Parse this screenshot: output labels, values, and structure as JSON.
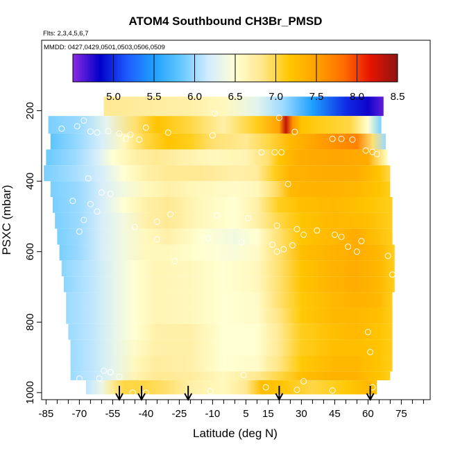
{
  "chart_data": {
    "type": "heatmap",
    "title": "ATOM4 Southbound CH3Br_PMSD",
    "subtitle_flights": "Flts: 2,3,4,5,6,7",
    "subtitle_dates": "MMDD: 0427,0429,0501,0503,0506,0509",
    "xlabel": "Latitude (deg N)",
    "ylabel": "PSXC (mbar)",
    "xlim": [
      -87,
      88
    ],
    "ylim": [
      1020,
      0
    ],
    "x_ticks": [
      -85,
      -70,
      -55,
      -40,
      -25,
      -10,
      5,
      15,
      30,
      45,
      60,
      75
    ],
    "x_tick_labels": [
      "-85",
      "-70",
      "-55",
      "-40",
      "-25",
      "-10",
      "5",
      "15",
      "30",
      "45",
      "60",
      "75"
    ],
    "y_ticks": [
      200,
      400,
      600,
      800,
      1000
    ],
    "y_tick_labels": [
      "200",
      "400",
      "600",
      "800",
      "1000"
    ],
    "colorbar": {
      "min": 4.5,
      "max": 8.5,
      "ticks": [
        5.0,
        5.5,
        6.0,
        6.5,
        7.0,
        7.5,
        8.0,
        8.5
      ],
      "tick_labels": [
        "5.0",
        "5.5",
        "6.0",
        "6.5",
        "7.0",
        "7.5",
        "8.0",
        "8.5"
      ],
      "colors": [
        "#8a2be2",
        "#0000c8",
        "#1e5aff",
        "#1ea0ff",
        "#64c8ff",
        "#d2ecff",
        "#ffffd2",
        "#ffe68c",
        "#ffc800",
        "#ffa000",
        "#ff6e00",
        "#e61400",
        "#8c1414"
      ]
    },
    "profile_marker_latitudes": [
      -52,
      -42,
      -21,
      20,
      61
    ],
    "layers": [
      {
        "p_top": 160,
        "p_bot": 215,
        "lat_min": -59,
        "lat_max": 67,
        "lats": [
          -59,
          -40,
          -20,
          -5,
          10,
          22,
          35,
          50,
          60,
          67
        ],
        "values": [
          6.8,
          6.75,
          6.7,
          6.6,
          6.3,
          6.0,
          5.5,
          5.0,
          4.8,
          4.6
        ]
      },
      {
        "p_top": 215,
        "p_bot": 265,
        "lat_min": -84,
        "lat_max": 66,
        "lats": [
          -84,
          -70,
          -58,
          -45,
          -35,
          -20,
          -5,
          10,
          20,
          23,
          26,
          30,
          40,
          52,
          60,
          66
        ],
        "values": [
          5.9,
          6.0,
          6.3,
          6.9,
          7.2,
          7.0,
          6.7,
          7.1,
          7.5,
          8.3,
          7.6,
          7.2,
          7.1,
          7.0,
          6.5,
          5.9
        ]
      },
      {
        "p_top": 265,
        "p_bot": 310,
        "lat_min": -83,
        "lat_max": 68,
        "lats": [
          -83,
          -70,
          -60,
          -50,
          -40,
          -30,
          -20,
          -10,
          5,
          15,
          25,
          35,
          45,
          55,
          62,
          68
        ],
        "values": [
          5.8,
          6.0,
          6.2,
          6.6,
          7.0,
          7.2,
          7.1,
          6.9,
          6.8,
          7.0,
          7.3,
          7.45,
          7.6,
          7.7,
          6.9,
          6.0
        ]
      },
      {
        "p_top": 310,
        "p_bot": 355,
        "lat_min": -85,
        "lat_max": 69,
        "lats": [
          -85,
          -72,
          -62,
          -55,
          -45,
          -35,
          -25,
          -10,
          5,
          15,
          20,
          30,
          45,
          60,
          65,
          69
        ],
        "values": [
          5.85,
          6.0,
          6.2,
          6.5,
          6.7,
          6.8,
          6.7,
          6.6,
          6.65,
          6.9,
          7.2,
          7.4,
          7.45,
          7.4,
          6.9,
          6.5
        ]
      },
      {
        "p_top": 355,
        "p_bot": 400,
        "lat_min": -86,
        "lat_max": 70,
        "lats": [
          -86,
          -75,
          -60,
          -50,
          -40,
          -30,
          -15,
          0,
          10,
          18,
          25,
          40,
          55,
          65,
          70
        ],
        "values": [
          5.9,
          6.0,
          6.2,
          6.5,
          6.7,
          6.8,
          6.8,
          6.7,
          6.75,
          7.1,
          7.35,
          7.4,
          7.4,
          7.2,
          7.0
        ]
      },
      {
        "p_top": 400,
        "p_bot": 445,
        "lat_min": -83,
        "lat_max": 70,
        "lats": [
          -83,
          -70,
          -60,
          -50,
          -40,
          -30,
          -15,
          0,
          10,
          18,
          25,
          40,
          55,
          65,
          70
        ],
        "values": [
          5.9,
          6.0,
          6.2,
          6.4,
          6.6,
          6.7,
          6.6,
          6.55,
          6.6,
          6.9,
          7.3,
          7.35,
          7.3,
          7.2,
          7.1
        ]
      },
      {
        "p_top": 445,
        "p_bot": 490,
        "lat_min": -82,
        "lat_max": 71,
        "lats": [
          -82,
          -70,
          -60,
          -50,
          -40,
          -30,
          -15,
          0,
          10,
          20,
          30,
          45,
          60,
          71
        ],
        "values": [
          5.9,
          6.0,
          6.2,
          6.5,
          6.7,
          6.8,
          6.6,
          6.5,
          6.7,
          7.1,
          7.25,
          7.3,
          7.2,
          7.1
        ]
      },
      {
        "p_top": 490,
        "p_bot": 535,
        "lat_min": -81,
        "lat_max": 71,
        "lats": [
          -81,
          -70,
          -60,
          -50,
          -40,
          -30,
          -15,
          0,
          10,
          20,
          30,
          45,
          60,
          71
        ],
        "values": [
          5.9,
          6.0,
          6.2,
          6.4,
          6.7,
          6.8,
          6.6,
          6.5,
          6.7,
          7.0,
          7.2,
          7.3,
          7.25,
          7.1
        ]
      },
      {
        "p_top": 535,
        "p_bot": 580,
        "lat_min": -80,
        "lat_max": 71,
        "lats": [
          -80,
          -70,
          -60,
          -50,
          -40,
          -30,
          -15,
          0,
          10,
          20,
          30,
          45,
          55,
          60,
          71
        ],
        "values": [
          5.9,
          6.0,
          6.2,
          6.4,
          6.6,
          6.7,
          6.5,
          6.4,
          6.5,
          6.9,
          7.2,
          7.3,
          7.4,
          7.3,
          7.1
        ]
      },
      {
        "p_top": 580,
        "p_bot": 625,
        "lat_min": -79,
        "lat_max": 72,
        "lats": [
          -79,
          -70,
          -60,
          -50,
          -40,
          -30,
          -15,
          0,
          10,
          20,
          30,
          45,
          55,
          65,
          72
        ],
        "values": [
          5.9,
          6.0,
          6.2,
          6.4,
          6.6,
          6.6,
          6.5,
          6.45,
          6.55,
          6.9,
          7.25,
          7.35,
          7.4,
          7.3,
          7.1
        ]
      },
      {
        "p_top": 625,
        "p_bot": 670,
        "lat_min": -78,
        "lat_max": 72,
        "lats": [
          -78,
          -65,
          -55,
          -45,
          -35,
          -20,
          -5,
          10,
          20,
          30,
          45,
          55,
          65,
          72
        ],
        "values": [
          5.95,
          6.1,
          6.3,
          6.5,
          6.65,
          6.6,
          6.5,
          6.6,
          6.9,
          7.2,
          7.35,
          7.4,
          7.3,
          7.1
        ]
      },
      {
        "p_top": 670,
        "p_bot": 715,
        "lat_min": -77,
        "lat_max": 72,
        "lats": [
          -77,
          -65,
          -55,
          -45,
          -35,
          -20,
          -5,
          10,
          20,
          30,
          45,
          55,
          65,
          72
        ],
        "values": [
          5.95,
          6.1,
          6.3,
          6.5,
          6.65,
          6.6,
          6.5,
          6.6,
          6.9,
          7.2,
          7.35,
          7.4,
          7.3,
          7.1
        ]
      },
      {
        "p_top": 715,
        "p_bot": 760,
        "lat_min": -76,
        "lat_max": 71,
        "lats": [
          -76,
          -65,
          -55,
          -45,
          -35,
          -20,
          -5,
          10,
          20,
          30,
          45,
          55,
          65,
          71
        ],
        "values": [
          6.0,
          6.1,
          6.3,
          6.5,
          6.65,
          6.6,
          6.5,
          6.55,
          6.9,
          7.15,
          7.3,
          7.35,
          7.3,
          7.1
        ]
      },
      {
        "p_top": 760,
        "p_bot": 805,
        "lat_min": -76,
        "lat_max": 71,
        "lats": [
          -76,
          -65,
          -55,
          -45,
          -35,
          -20,
          -5,
          10,
          20,
          30,
          45,
          55,
          65,
          71
        ],
        "values": [
          6.0,
          6.1,
          6.3,
          6.5,
          6.65,
          6.6,
          6.5,
          6.55,
          6.85,
          7.15,
          7.3,
          7.3,
          7.25,
          7.1
        ]
      },
      {
        "p_top": 805,
        "p_bot": 850,
        "lat_min": -75,
        "lat_max": 71,
        "lats": [
          -75,
          -65,
          -55,
          -45,
          -35,
          -20,
          -5,
          10,
          20,
          30,
          45,
          55,
          65,
          71
        ],
        "values": [
          6.0,
          6.1,
          6.3,
          6.5,
          6.7,
          6.7,
          6.5,
          6.5,
          6.8,
          7.1,
          7.25,
          7.3,
          7.2,
          7.1
        ]
      },
      {
        "p_top": 850,
        "p_bot": 895,
        "lat_min": -74,
        "lat_max": 71,
        "lats": [
          -74,
          -65,
          -55,
          -45,
          -35,
          -20,
          -5,
          10,
          20,
          30,
          45,
          55,
          65,
          71
        ],
        "values": [
          6.0,
          6.1,
          6.3,
          6.55,
          6.7,
          6.7,
          6.5,
          6.5,
          6.8,
          7.1,
          7.25,
          7.25,
          7.2,
          7.1
        ]
      },
      {
        "p_top": 895,
        "p_bot": 940,
        "lat_min": -74,
        "lat_max": 71,
        "lats": [
          -74,
          -65,
          -55,
          -45,
          -35,
          -20,
          -5,
          10,
          20,
          30,
          45,
          55,
          65,
          71
        ],
        "values": [
          6.0,
          6.1,
          6.3,
          6.6,
          6.75,
          6.7,
          6.5,
          6.55,
          6.85,
          7.15,
          7.3,
          7.3,
          7.2,
          7.1
        ]
      },
      {
        "p_top": 940,
        "p_bot": 965,
        "lat_min": -74,
        "lat_max": 70,
        "lats": [
          -74,
          -65,
          -55,
          -45,
          -35,
          -20,
          -5,
          10,
          20,
          30,
          45,
          55,
          65,
          70
        ],
        "values": [
          6.0,
          6.1,
          6.3,
          6.65,
          6.8,
          6.75,
          6.6,
          6.8,
          7.0,
          7.25,
          7.35,
          7.35,
          7.2,
          7.1
        ]
      },
      {
        "p_top": 965,
        "p_bot": 1005,
        "lat_min": -67,
        "lat_max": 64,
        "lats": [
          -67,
          -60,
          -55,
          -50,
          -40,
          -30,
          -20,
          -5,
          5,
          12,
          20,
          35,
          50,
          60,
          64
        ],
        "values": [
          6.1,
          6.35,
          6.8,
          7.0,
          7.0,
          6.9,
          6.7,
          6.6,
          6.8,
          7.25,
          7.2,
          7.0,
          7.15,
          7.3,
          7.2
        ]
      }
    ],
    "sample_points": [
      {
        "lat": -52,
        "p": 265
      },
      {
        "lat": -49,
        "p": 280
      },
      {
        "lat": -62,
        "p": 262
      },
      {
        "lat": -78,
        "p": 251
      },
      {
        "lat": -71,
        "p": 244
      },
      {
        "lat": -68,
        "p": 228
      },
      {
        "lat": -65,
        "p": 259
      },
      {
        "lat": -57,
        "p": 258
      },
      {
        "lat": -47,
        "p": 268
      },
      {
        "lat": -43,
        "p": 282
      },
      {
        "lat": -40,
        "p": 248
      },
      {
        "lat": -30,
        "p": 262
      },
      {
        "lat": -9,
        "p": 208
      },
      {
        "lat": -10,
        "p": 270
      },
      {
        "lat": 20,
        "p": 220
      },
      {
        "lat": 27,
        "p": 260
      },
      {
        "lat": 12,
        "p": 318
      },
      {
        "lat": 18,
        "p": 318
      },
      {
        "lat": 21,
        "p": 318
      },
      {
        "lat": 48,
        "p": 280
      },
      {
        "lat": 44,
        "p": 280
      },
      {
        "lat": 53,
        "p": 282
      },
      {
        "lat": 59,
        "p": 313
      },
      {
        "lat": 62,
        "p": 317
      },
      {
        "lat": 64,
        "p": 323
      },
      {
        "lat": 24,
        "p": 408
      },
      {
        "lat": -66,
        "p": 392
      },
      {
        "lat": -60,
        "p": 432
      },
      {
        "lat": -56,
        "p": 436
      },
      {
        "lat": -73,
        "p": 456
      },
      {
        "lat": -65,
        "p": 465
      },
      {
        "lat": -62,
        "p": 486
      },
      {
        "lat": -68,
        "p": 510
      },
      {
        "lat": -70,
        "p": 543
      },
      {
        "lat": -45,
        "p": 530
      },
      {
        "lat": -35,
        "p": 515
      },
      {
        "lat": -29,
        "p": 494
      },
      {
        "lat": -8,
        "p": 497
      },
      {
        "lat": 6,
        "p": 505
      },
      {
        "lat": 19,
        "p": 526
      },
      {
        "lat": 28,
        "p": 536
      },
      {
        "lat": 31,
        "p": 552
      },
      {
        "lat": 37,
        "p": 540
      },
      {
        "lat": 45,
        "p": 552
      },
      {
        "lat": 48,
        "p": 558
      },
      {
        "lat": 57,
        "p": 570
      },
      {
        "lat": -35,
        "p": 565
      },
      {
        "lat": -12,
        "p": 562
      },
      {
        "lat": 3,
        "p": 573
      },
      {
        "lat": 17,
        "p": 580
      },
      {
        "lat": 22,
        "p": 593
      },
      {
        "lat": 26,
        "p": 582
      },
      {
        "lat": 51,
        "p": 586
      },
      {
        "lat": 55,
        "p": 600
      },
      {
        "lat": 69,
        "p": 612
      },
      {
        "lat": 71,
        "p": 665
      },
      {
        "lat": 60,
        "p": 828
      },
      {
        "lat": 61,
        "p": 885
      },
      {
        "lat": -27,
        "p": 627
      },
      {
        "lat": 19,
        "p": 600
      },
      {
        "lat": -61,
        "p": 960
      },
      {
        "lat": -59,
        "p": 938
      },
      {
        "lat": -56,
        "p": 942
      },
      {
        "lat": -52,
        "p": 955
      },
      {
        "lat": -46,
        "p": 1000
      },
      {
        "lat": -40,
        "p": 1000
      },
      {
        "lat": 4,
        "p": 950
      },
      {
        "lat": -11,
        "p": 996
      },
      {
        "lat": 14,
        "p": 985
      },
      {
        "lat": 28,
        "p": 992
      },
      {
        "lat": 31,
        "p": 968
      },
      {
        "lat": 44,
        "p": 994
      },
      {
        "lat": 62,
        "p": 985
      },
      {
        "lat": -70,
        "p": 960
      }
    ]
  }
}
